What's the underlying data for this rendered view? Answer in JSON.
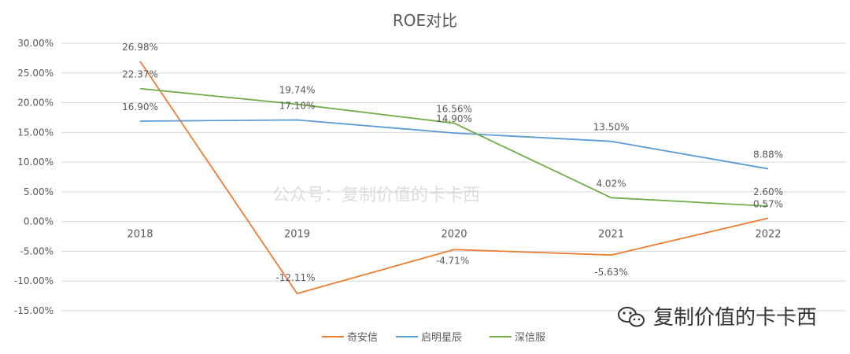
{
  "chart_data": {
    "type": "line",
    "title": "ROE对比",
    "categories": [
      "2018",
      "2019",
      "2020",
      "2021",
      "2022"
    ],
    "ylim": [
      -15,
      30
    ],
    "yticks": [
      30,
      25,
      20,
      15,
      10,
      5,
      0,
      -5,
      -10,
      -15
    ],
    "ytick_labels": [
      "30.00%",
      "25.00%",
      "20.00%",
      "15.00%",
      "10.00%",
      "5.00%",
      "0.00%",
      "-5.00%",
      "-10.00%",
      "-15.00%"
    ],
    "grid": true,
    "legend_position": "bottom",
    "series": [
      {
        "name": "奇安信",
        "color": "#ED7D31",
        "values": [
          26.98,
          -12.11,
          -4.71,
          -5.63,
          0.57
        ],
        "labels": [
          "26.98%",
          "-12.11%",
          "-4.71%",
          "-5.63%",
          "0.57%"
        ]
      },
      {
        "name": "启明星辰",
        "color": "#5B9BD5",
        "values": [
          16.9,
          17.1,
          14.9,
          13.5,
          8.88
        ],
        "labels": [
          "16.90%",
          "17.10%",
          "14.90%",
          "13.50%",
          "8.88%"
        ]
      },
      {
        "name": "深信服",
        "color": "#70AD47",
        "values": [
          22.37,
          19.74,
          16.56,
          4.02,
          2.6
        ],
        "labels": [
          "22.37%",
          "19.74%",
          "16.56%",
          "4.02%",
          "2.60%"
        ]
      }
    ]
  },
  "watermark": "公众号：复制价值的卡卡西",
  "brand": {
    "text": "复制价值的卡卡西",
    "icon": "wechat-icon"
  }
}
